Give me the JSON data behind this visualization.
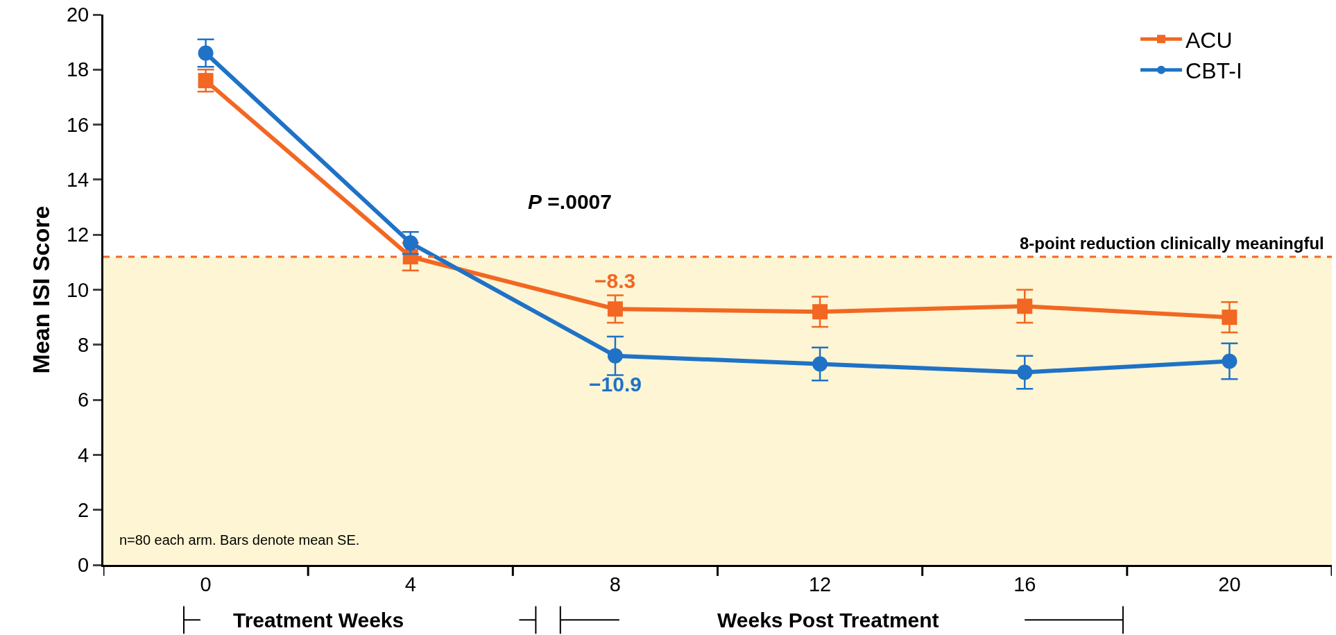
{
  "chart_data": {
    "type": "line",
    "ylabel": "Mean ISI Score",
    "x": [
      0,
      4,
      8,
      12,
      16,
      20
    ],
    "series": [
      {
        "name": "ACU",
        "color": "#f26722",
        "marker": "square",
        "values": [
          17.6,
          11.2,
          9.3,
          9.2,
          9.4,
          9.0
        ],
        "errors": [
          0.4,
          0.5,
          0.5,
          0.55,
          0.6,
          0.55
        ]
      },
      {
        "name": "CBT-I",
        "color": "#1f72c6",
        "marker": "circle",
        "values": [
          18.6,
          11.7,
          7.6,
          7.3,
          7.0,
          7.4
        ],
        "errors": [
          0.5,
          0.4,
          0.7,
          0.6,
          0.6,
          0.65
        ]
      }
    ],
    "xlim": [
      -2,
      22
    ],
    "xticks": [
      {
        "value": -2,
        "label": null
      },
      0,
      {
        "value": 2,
        "label": null
      },
      4,
      {
        "value": 6,
        "label": null
      },
      8,
      {
        "value": 10,
        "label": null
      },
      12,
      {
        "value": 14,
        "label": null
      },
      16,
      {
        "value": 18,
        "label": null
      },
      20,
      {
        "value": 22,
        "label": null
      }
    ],
    "ylim": [
      0,
      20
    ],
    "yticks": [
      0,
      2,
      4,
      6,
      8,
      10,
      12,
      14,
      16,
      18,
      20
    ],
    "ref_lines": [
      {
        "axis": "y",
        "value": 11.2,
        "label": "8-point reduction clinically meaningful",
        "color": "#f26722",
        "line_style": "dashed"
      }
    ],
    "bands": [
      {
        "axis": "y",
        "from": 0,
        "to": 11.2,
        "color": "#fdf5d3"
      }
    ],
    "annotations": [
      {
        "text": "−8.3",
        "x": 8,
        "y": 9.3
      },
      {
        "text": "−10.9",
        "x": 8,
        "y": 7.6
      },
      "P =.0007",
      "n=80 each arm. Bars denote mean SE.",
      "Treatment Weeks",
      "Weeks Post Treatment"
    ],
    "grid": false,
    "legend": "top right",
    "line_style": "solid"
  }
}
